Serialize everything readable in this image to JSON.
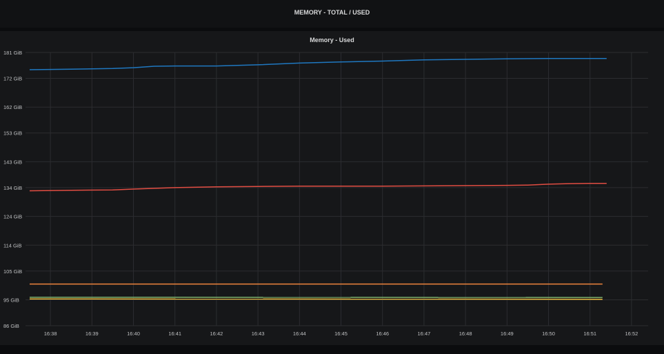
{
  "row": {
    "title": "MEMORY - TOTAL / USED"
  },
  "panel": {
    "title": "Memory - Used"
  },
  "chart_data": {
    "type": "line",
    "title": "Memory - Used",
    "xlabel": "",
    "ylabel": "",
    "grid": true,
    "legend": "none",
    "y_unit": "GiB",
    "ylim": [
      86,
      181
    ],
    "y_ticks": [
      "181 GiB",
      "172 GiB",
      "162 GiB",
      "153 GiB",
      "143 GiB",
      "134 GiB",
      "124 GiB",
      "114 GiB",
      "105 GiB",
      "95 GiB",
      "86 GiB"
    ],
    "y_tick_values": [
      181,
      172,
      162,
      153,
      143,
      134,
      124,
      114,
      105,
      95,
      86
    ],
    "x_ticks": [
      "16:38",
      "16:39",
      "16:40",
      "16:41",
      "16:42",
      "16:43",
      "16:44",
      "16:45",
      "16:46",
      "16:47",
      "16:48",
      "16:49",
      "16:50",
      "16:51",
      "16:52"
    ],
    "xlim": [
      "16:37.4",
      "16:52.4"
    ],
    "series": [
      {
        "color": "#1f78c1",
        "x": [
          "16:37.5",
          "16:38.5",
          "16:39.5",
          "16:40",
          "16:40.5",
          "16:41",
          "16:42",
          "16:43",
          "16:44",
          "16:45",
          "16:46",
          "16:47",
          "16:48",
          "16:49",
          "16:50",
          "16:51",
          "16:51.4"
        ],
        "values": [
          175.0,
          175.2,
          175.4,
          175.7,
          176.2,
          176.3,
          176.3,
          176.7,
          177.3,
          177.7,
          178.0,
          178.4,
          178.6,
          178.8,
          178.9,
          178.9,
          178.9
        ]
      },
      {
        "color": "#e24d42",
        "x": [
          "16:37.5",
          "16:38.5",
          "16:39.5",
          "16:40",
          "16:41",
          "16:42",
          "16:43",
          "16:44",
          "16:45",
          "16:46",
          "16:47",
          "16:48",
          "16:49",
          "16:49.5",
          "16:50",
          "16:50.5",
          "16:51",
          "16:51.4"
        ],
        "values": [
          132.9,
          133.1,
          133.2,
          133.5,
          134.0,
          134.3,
          134.4,
          134.5,
          134.5,
          134.5,
          134.6,
          134.7,
          134.8,
          134.9,
          135.2,
          135.4,
          135.5,
          135.5
        ]
      },
      {
        "color": "#ef843c",
        "x": [
          "16:37.5",
          "16:51.3"
        ],
        "values": [
          100.5,
          100.5
        ]
      },
      {
        "color": "#7eb26d",
        "x": [
          "16:37.5",
          "16:51.3"
        ],
        "values": [
          95.9,
          95.8
        ]
      },
      {
        "color": "#eab839",
        "x": [
          "16:37.5",
          "16:51.3"
        ],
        "values": [
          95.3,
          95.2
        ]
      }
    ]
  }
}
